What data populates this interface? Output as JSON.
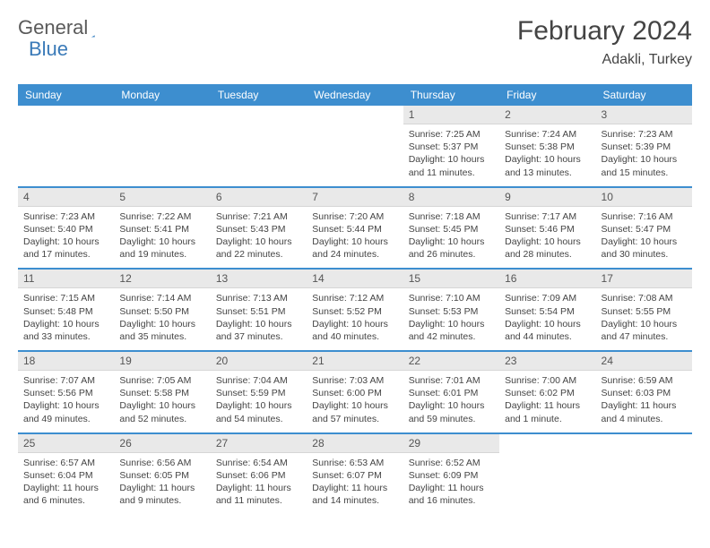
{
  "logo": {
    "word1": "General",
    "word2": "Blue"
  },
  "title": "February 2024",
  "location": "Adakli, Turkey",
  "colors": {
    "header_bg": "#3d8ecf",
    "header_text": "#ffffff",
    "daynum_bg": "#e9e9e9",
    "row_border": "#3d8ecf",
    "text": "#444444",
    "logo_gray": "#5a5a5a",
    "logo_blue": "#3a7ab8"
  },
  "day_names": [
    "Sunday",
    "Monday",
    "Tuesday",
    "Wednesday",
    "Thursday",
    "Friday",
    "Saturday"
  ],
  "weeks": [
    [
      null,
      null,
      null,
      null,
      {
        "n": "1",
        "sr": "7:25 AM",
        "ss": "5:37 PM",
        "dl": "10 hours and 11 minutes."
      },
      {
        "n": "2",
        "sr": "7:24 AM",
        "ss": "5:38 PM",
        "dl": "10 hours and 13 minutes."
      },
      {
        "n": "3",
        "sr": "7:23 AM",
        "ss": "5:39 PM",
        "dl": "10 hours and 15 minutes."
      }
    ],
    [
      {
        "n": "4",
        "sr": "7:23 AM",
        "ss": "5:40 PM",
        "dl": "10 hours and 17 minutes."
      },
      {
        "n": "5",
        "sr": "7:22 AM",
        "ss": "5:41 PM",
        "dl": "10 hours and 19 minutes."
      },
      {
        "n": "6",
        "sr": "7:21 AM",
        "ss": "5:43 PM",
        "dl": "10 hours and 22 minutes."
      },
      {
        "n": "7",
        "sr": "7:20 AM",
        "ss": "5:44 PM",
        "dl": "10 hours and 24 minutes."
      },
      {
        "n": "8",
        "sr": "7:18 AM",
        "ss": "5:45 PM",
        "dl": "10 hours and 26 minutes."
      },
      {
        "n": "9",
        "sr": "7:17 AM",
        "ss": "5:46 PM",
        "dl": "10 hours and 28 minutes."
      },
      {
        "n": "10",
        "sr": "7:16 AM",
        "ss": "5:47 PM",
        "dl": "10 hours and 30 minutes."
      }
    ],
    [
      {
        "n": "11",
        "sr": "7:15 AM",
        "ss": "5:48 PM",
        "dl": "10 hours and 33 minutes."
      },
      {
        "n": "12",
        "sr": "7:14 AM",
        "ss": "5:50 PM",
        "dl": "10 hours and 35 minutes."
      },
      {
        "n": "13",
        "sr": "7:13 AM",
        "ss": "5:51 PM",
        "dl": "10 hours and 37 minutes."
      },
      {
        "n": "14",
        "sr": "7:12 AM",
        "ss": "5:52 PM",
        "dl": "10 hours and 40 minutes."
      },
      {
        "n": "15",
        "sr": "7:10 AM",
        "ss": "5:53 PM",
        "dl": "10 hours and 42 minutes."
      },
      {
        "n": "16",
        "sr": "7:09 AM",
        "ss": "5:54 PM",
        "dl": "10 hours and 44 minutes."
      },
      {
        "n": "17",
        "sr": "7:08 AM",
        "ss": "5:55 PM",
        "dl": "10 hours and 47 minutes."
      }
    ],
    [
      {
        "n": "18",
        "sr": "7:07 AM",
        "ss": "5:56 PM",
        "dl": "10 hours and 49 minutes."
      },
      {
        "n": "19",
        "sr": "7:05 AM",
        "ss": "5:58 PM",
        "dl": "10 hours and 52 minutes."
      },
      {
        "n": "20",
        "sr": "7:04 AM",
        "ss": "5:59 PM",
        "dl": "10 hours and 54 minutes."
      },
      {
        "n": "21",
        "sr": "7:03 AM",
        "ss": "6:00 PM",
        "dl": "10 hours and 57 minutes."
      },
      {
        "n": "22",
        "sr": "7:01 AM",
        "ss": "6:01 PM",
        "dl": "10 hours and 59 minutes."
      },
      {
        "n": "23",
        "sr": "7:00 AM",
        "ss": "6:02 PM",
        "dl": "11 hours and 1 minute."
      },
      {
        "n": "24",
        "sr": "6:59 AM",
        "ss": "6:03 PM",
        "dl": "11 hours and 4 minutes."
      }
    ],
    [
      {
        "n": "25",
        "sr": "6:57 AM",
        "ss": "6:04 PM",
        "dl": "11 hours and 6 minutes."
      },
      {
        "n": "26",
        "sr": "6:56 AM",
        "ss": "6:05 PM",
        "dl": "11 hours and 9 minutes."
      },
      {
        "n": "27",
        "sr": "6:54 AM",
        "ss": "6:06 PM",
        "dl": "11 hours and 11 minutes."
      },
      {
        "n": "28",
        "sr": "6:53 AM",
        "ss": "6:07 PM",
        "dl": "11 hours and 14 minutes."
      },
      {
        "n": "29",
        "sr": "6:52 AM",
        "ss": "6:09 PM",
        "dl": "11 hours and 16 minutes."
      },
      null,
      null
    ]
  ],
  "labels": {
    "sunrise": "Sunrise: ",
    "sunset": "Sunset: ",
    "daylight": "Daylight: "
  }
}
